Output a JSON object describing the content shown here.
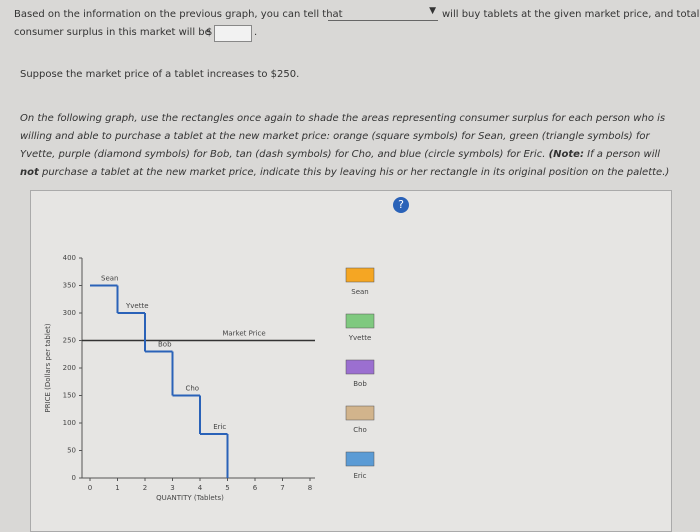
{
  "question": {
    "line1_before": "Based on the information on the previous graph, you can tell that",
    "line1_after": "will buy tablets at the given market price, and total",
    "line2": "consumer surplus in this market will be",
    "currency": "$",
    "period": ".",
    "scenario": "Suppose the market price of a tablet increases to $250.",
    "instructions": "On the following graph, use the rectangles once again to shade the areas representing consumer surplus for each person who is willing and able to purchase a tablet at the new market price: orange (square symbols) for Sean, green (triangle symbols) for Yvette, purple (diamond symbols) for Bob, tan (dash symbols) for Cho, and blue (circle symbols) for Eric.",
    "note_label": "(Note:",
    "note_before": "If a person will",
    "note_not": "not",
    "note_after": "purchase a tablet at the new market price, indicate this by leaving his or her rectangle in its original position on the palette.)"
  },
  "graph": {
    "help": "?",
    "xlabel": "QUANTITY (Tablets)",
    "ylabel": "PRICE (Dollars per tablet)",
    "xlim": [
      0,
      8
    ],
    "ylim": [
      0,
      400
    ],
    "xticks": [
      0,
      1,
      2,
      3,
      4,
      5,
      6,
      7,
      8
    ],
    "yticks": [
      0,
      50,
      100,
      150,
      200,
      250,
      300,
      350,
      400
    ],
    "steps": [
      {
        "name": "Sean",
        "value": 350
      },
      {
        "name": "Yvette",
        "value": 300
      },
      {
        "name": "Bob",
        "value": 230
      },
      {
        "name": "Cho",
        "value": 150
      },
      {
        "name": "Eric",
        "value": 80
      }
    ],
    "market_price": {
      "label": "Market Price",
      "value": 250
    },
    "palette": [
      {
        "name": "Sean",
        "color": "#f5a623"
      },
      {
        "name": "Yvette",
        "color": "#7fc97f"
      },
      {
        "name": "Bob",
        "color": "#9b6fd0"
      },
      {
        "name": "Cho",
        "color": "#d2b48c"
      },
      {
        "name": "Eric",
        "color": "#5b9bd5"
      }
    ]
  }
}
